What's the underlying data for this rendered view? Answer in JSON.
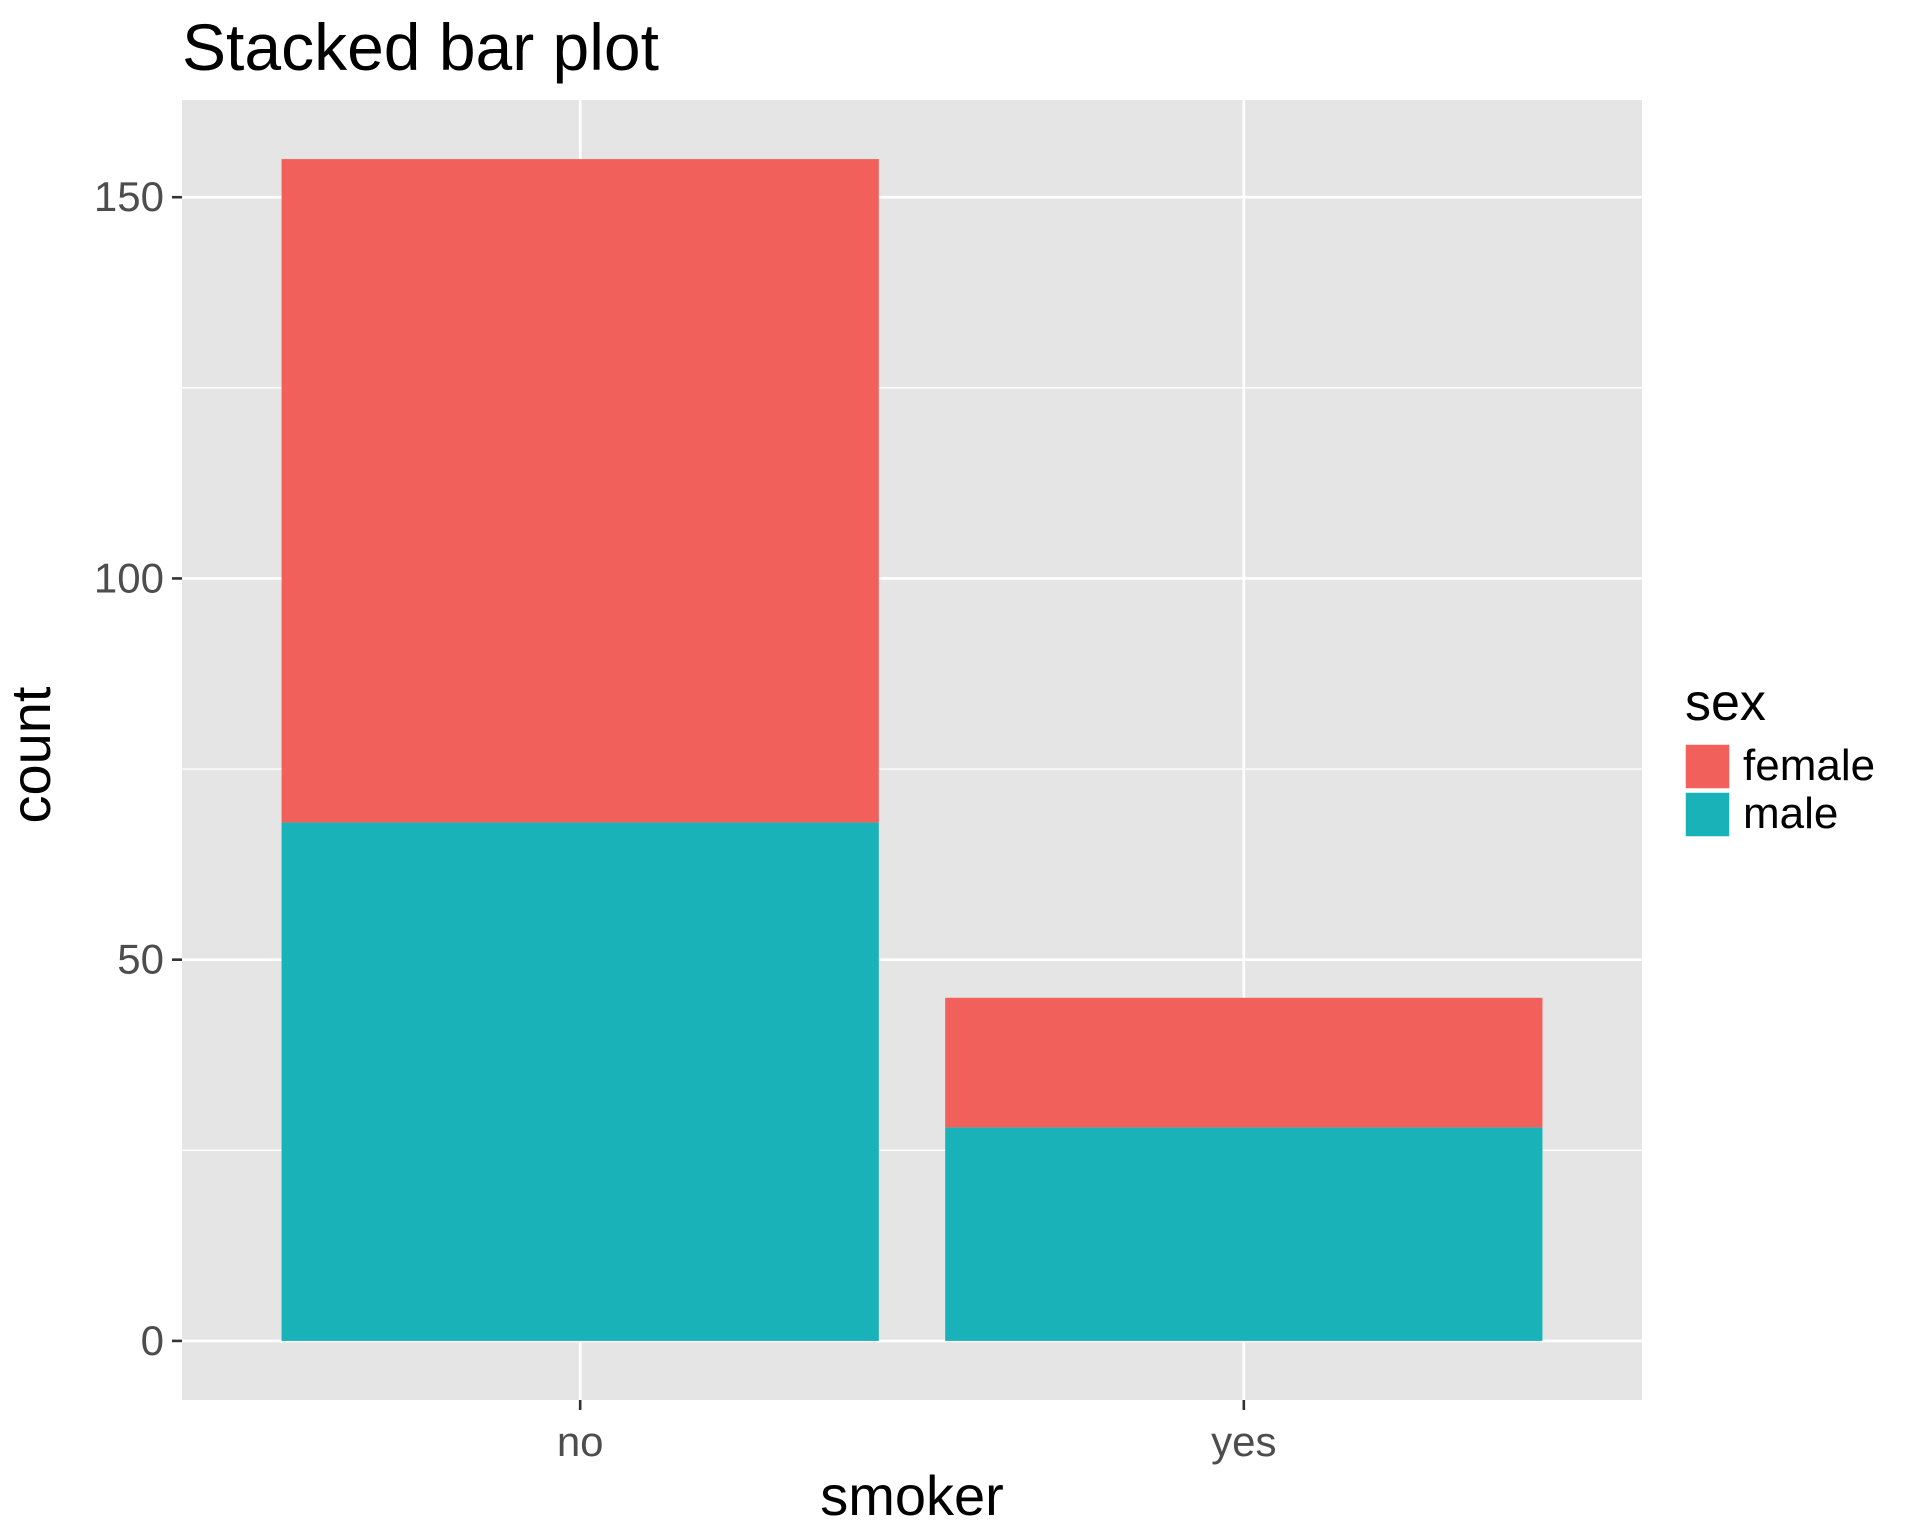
{
  "chart_data": {
    "type": "bar",
    "stacked": true,
    "title": "Stacked bar plot",
    "xlabel": "smoker",
    "ylabel": "count",
    "categories": [
      "no",
      "yes"
    ],
    "series": [
      {
        "name": "male",
        "values": [
          68,
          28
        ],
        "color": "#19B2B8"
      },
      {
        "name": "female",
        "values": [
          87,
          17
        ],
        "color": "#F2605B"
      }
    ],
    "yticks": [
      0,
      50,
      100,
      150
    ],
    "ylim": [
      -7.75,
      162.75
    ],
    "grid": true,
    "legend": {
      "title": "sex",
      "placement": "right",
      "entries": [
        {
          "label": "female",
          "color": "#F2605B"
        },
        {
          "label": "male",
          "color": "#19B2B8"
        }
      ]
    },
    "panel_background": "#E5E5E5",
    "grid_color": "#FFFFFF"
  }
}
